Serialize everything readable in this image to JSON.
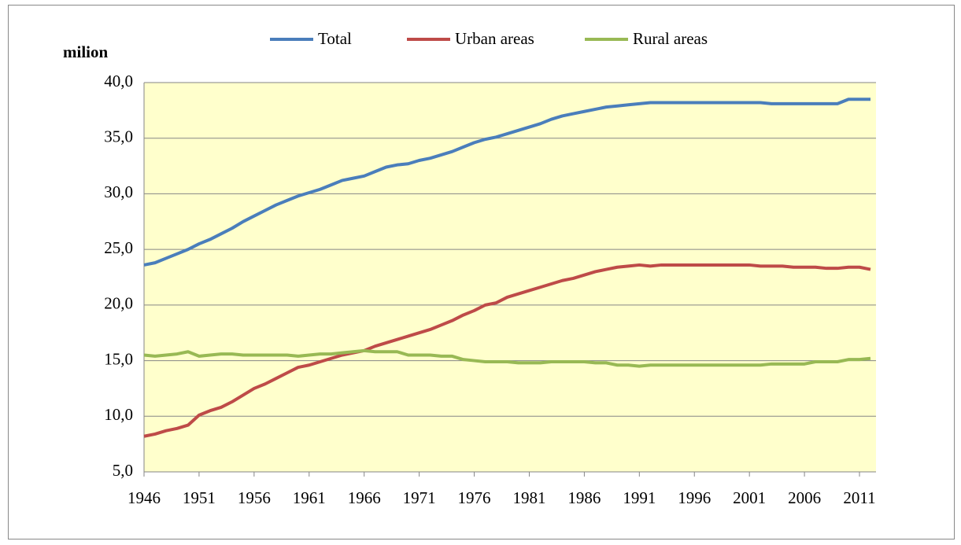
{
  "chart_data": {
    "type": "line",
    "y_label": "milion",
    "x": [
      1946,
      1947,
      1948,
      1949,
      1950,
      1951,
      1952,
      1953,
      1954,
      1955,
      1956,
      1957,
      1958,
      1959,
      1960,
      1961,
      1962,
      1963,
      1964,
      1965,
      1966,
      1967,
      1968,
      1969,
      1970,
      1971,
      1972,
      1973,
      1974,
      1975,
      1976,
      1977,
      1978,
      1979,
      1980,
      1981,
      1982,
      1983,
      1984,
      1985,
      1986,
      1987,
      1988,
      1989,
      1990,
      1991,
      1992,
      1993,
      1994,
      1995,
      1996,
      1997,
      1998,
      1999,
      2000,
      2001,
      2002,
      2003,
      2004,
      2005,
      2006,
      2007,
      2008,
      2009,
      2010,
      2011,
      2012
    ],
    "series": [
      {
        "name": "Total",
        "color": "#4a7ebb",
        "values": [
          23.6,
          23.8,
          24.2,
          24.6,
          25.0,
          25.5,
          25.9,
          26.4,
          26.9,
          27.5,
          28.0,
          28.5,
          29.0,
          29.4,
          29.8,
          30.1,
          30.4,
          30.8,
          31.2,
          31.4,
          31.6,
          32.0,
          32.4,
          32.6,
          32.7,
          33.0,
          33.2,
          33.5,
          33.8,
          34.2,
          34.6,
          34.9,
          35.1,
          35.4,
          35.7,
          36.0,
          36.3,
          36.7,
          37.0,
          37.2,
          37.4,
          37.6,
          37.8,
          37.9,
          38.0,
          38.1,
          38.2,
          38.2,
          38.2,
          38.2,
          38.2,
          38.2,
          38.2,
          38.2,
          38.2,
          38.2,
          38.2,
          38.1,
          38.1,
          38.1,
          38.1,
          38.1,
          38.1,
          38.1,
          38.5,
          38.5,
          38.5
        ]
      },
      {
        "name": "Urban areas",
        "color": "#be4b48",
        "values": [
          8.2,
          8.4,
          8.7,
          8.9,
          9.2,
          10.1,
          10.5,
          10.8,
          11.3,
          11.9,
          12.5,
          12.9,
          13.4,
          13.9,
          14.4,
          14.6,
          14.9,
          15.2,
          15.5,
          15.7,
          15.9,
          16.3,
          16.6,
          16.9,
          17.2,
          17.5,
          17.8,
          18.2,
          18.6,
          19.1,
          19.5,
          20.0,
          20.2,
          20.7,
          21.0,
          21.3,
          21.6,
          21.9,
          22.2,
          22.4,
          22.7,
          23.0,
          23.2,
          23.4,
          23.5,
          23.6,
          23.5,
          23.6,
          23.6,
          23.6,
          23.6,
          23.6,
          23.6,
          23.6,
          23.6,
          23.6,
          23.5,
          23.5,
          23.5,
          23.4,
          23.4,
          23.4,
          23.3,
          23.3,
          23.4,
          23.4,
          23.2
        ]
      },
      {
        "name": "Rural areas",
        "color": "#98b954",
        "values": [
          15.5,
          15.4,
          15.5,
          15.6,
          15.8,
          15.4,
          15.5,
          15.6,
          15.6,
          15.5,
          15.5,
          15.5,
          15.5,
          15.5,
          15.4,
          15.5,
          15.6,
          15.6,
          15.7,
          15.8,
          15.9,
          15.8,
          15.8,
          15.8,
          15.5,
          15.5,
          15.5,
          15.4,
          15.4,
          15.1,
          15.0,
          14.9,
          14.9,
          14.9,
          14.8,
          14.8,
          14.8,
          14.9,
          14.9,
          14.9,
          14.9,
          14.8,
          14.8,
          14.6,
          14.6,
          14.5,
          14.6,
          14.6,
          14.6,
          14.6,
          14.6,
          14.6,
          14.6,
          14.6,
          14.6,
          14.6,
          14.6,
          14.7,
          14.7,
          14.7,
          14.7,
          14.9,
          14.9,
          14.9,
          15.1,
          15.1,
          15.2
        ]
      }
    ],
    "xlim": [
      1946,
      2012.5
    ],
    "xticks": [
      1946,
      1951,
      1956,
      1961,
      1966,
      1971,
      1976,
      1981,
      1986,
      1991,
      1996,
      2001,
      2006,
      2011
    ],
    "ylim": [
      5,
      40
    ],
    "yticks": [
      {
        "value": 5,
        "label": "5,0"
      },
      {
        "value": 10,
        "label": "10,0"
      },
      {
        "value": 15,
        "label": "15,0"
      },
      {
        "value": 20,
        "label": "20,0"
      },
      {
        "value": 25,
        "label": "25,0"
      },
      {
        "value": 30,
        "label": "30,0"
      },
      {
        "value": 35,
        "label": "35,0"
      },
      {
        "value": 40,
        "label": "40,0"
      }
    ],
    "grid": true,
    "legend": "top",
    "plot_background": "#ffffcc"
  }
}
